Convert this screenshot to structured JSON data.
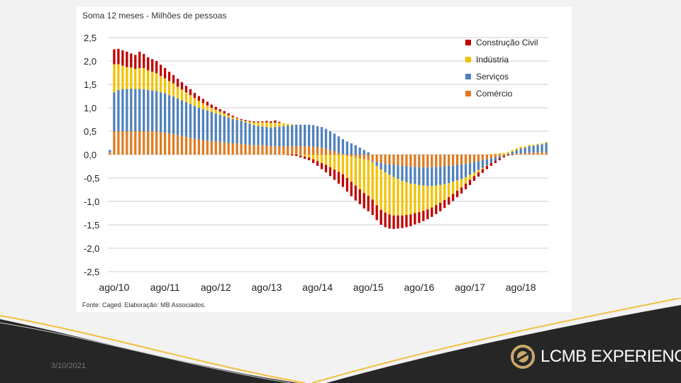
{
  "slide": {
    "date": "3/10/2021",
    "page_number": "21",
    "brand": "LCMB EXPERIENCE"
  },
  "colors": {
    "construcao": "#c00000",
    "industria": "#f2c200",
    "servicos": "#4f81bd",
    "comercio": "#e07b20",
    "grid": "#bfbfbf"
  },
  "chart_data": {
    "type": "bar",
    "stacked": true,
    "subtitle": "Soma 12 meses - Milhões de pessoas",
    "source": "Fonte: Caged. Elaboração: MB Associados.",
    "ylim": [
      -2.5,
      2.5
    ],
    "yticks": [
      "2,5",
      "2,0",
      "1,5",
      "1,0",
      "0,5",
      "0,0",
      "-0,5",
      "-1,0",
      "-1,5",
      "-2,0",
      "-2,5"
    ],
    "xticks": [
      "ago/10",
      "ago/11",
      "ago/12",
      "ago/13",
      "ago/14",
      "ago/15",
      "ago/16",
      "ago/17",
      "ago/18"
    ],
    "legend": [
      "Construção Civil",
      "Indústria",
      "Serviços",
      "Comércio"
    ],
    "series": [
      {
        "name": "Comércio",
        "color": "#e07b20",
        "values": [
          0.05,
          0.5,
          0.5,
          0.5,
          0.5,
          0.5,
          0.5,
          0.5,
          0.5,
          0.5,
          0.5,
          0.5,
          0.48,
          0.47,
          0.45,
          0.44,
          0.42,
          0.4,
          0.38,
          0.36,
          0.34,
          0.32,
          0.31,
          0.3,
          0.29,
          0.28,
          0.27,
          0.26,
          0.25,
          0.24,
          0.24,
          0.23,
          0.22,
          0.21,
          0.2,
          0.2,
          0.2,
          0.19,
          0.18,
          0.18,
          0.18,
          0.18,
          0.18,
          0.18,
          0.18,
          0.18,
          0.18,
          0.18,
          0.17,
          0.16,
          0.15,
          0.13,
          0.1,
          0.07,
          0.04,
          0.01,
          -0.02,
          -0.04,
          -0.06,
          -0.08,
          -0.1,
          -0.12,
          -0.14,
          -0.16,
          -0.18,
          -0.2,
          -0.21,
          -0.22,
          -0.23,
          -0.24,
          -0.25,
          -0.26,
          -0.26,
          -0.27,
          -0.27,
          -0.27,
          -0.27,
          -0.26,
          -0.26,
          -0.25,
          -0.24,
          -0.23,
          -0.22,
          -0.21,
          -0.2,
          -0.18,
          -0.16,
          -0.14,
          -0.12,
          -0.1,
          -0.08,
          -0.06,
          -0.04,
          -0.02,
          0.0,
          0.01,
          0.02,
          0.03,
          0.03,
          0.04,
          0.04,
          0.05,
          0.05,
          0.05
        ]
      },
      {
        "name": "Serviços",
        "color": "#4f81bd",
        "values": [
          0.05,
          0.83,
          0.88,
          0.9,
          0.9,
          0.91,
          0.9,
          0.9,
          0.9,
          0.88,
          0.87,
          0.86,
          0.85,
          0.84,
          0.82,
          0.8,
          0.78,
          0.76,
          0.74,
          0.72,
          0.7,
          0.68,
          0.66,
          0.64,
          0.62,
          0.6,
          0.58,
          0.56,
          0.54,
          0.52,
          0.5,
          0.49,
          0.47,
          0.45,
          0.43,
          0.41,
          0.4,
          0.4,
          0.4,
          0.41,
          0.42,
          0.43,
          0.44,
          0.45,
          0.46,
          0.46,
          0.46,
          0.46,
          0.46,
          0.45,
          0.44,
          0.42,
          0.4,
          0.38,
          0.35,
          0.32,
          0.28,
          0.24,
          0.2,
          0.15,
          0.1,
          0.05,
          -0.02,
          -0.08,
          -0.14,
          -0.18,
          -0.22,
          -0.26,
          -0.29,
          -0.32,
          -0.34,
          -0.36,
          -0.37,
          -0.38,
          -0.39,
          -0.4,
          -0.4,
          -0.4,
          -0.39,
          -0.38,
          -0.37,
          -0.35,
          -0.33,
          -0.31,
          -0.28,
          -0.25,
          -0.22,
          -0.19,
          -0.16,
          -0.13,
          -0.1,
          -0.07,
          -0.04,
          -0.01,
          0.02,
          0.05,
          0.08,
          0.1,
          0.12,
          0.14,
          0.15,
          0.16,
          0.17,
          0.2
        ]
      },
      {
        "name": "Indústria",
        "color": "#f2c200",
        "values": [
          0.0,
          0.6,
          0.55,
          0.5,
          0.47,
          0.45,
          0.43,
          0.45,
          0.45,
          0.42,
          0.4,
          0.38,
          0.35,
          0.32,
          0.3,
          0.28,
          0.25,
          0.23,
          0.21,
          0.19,
          0.17,
          0.15,
          0.13,
          0.11,
          0.09,
          0.08,
          0.07,
          0.06,
          0.05,
          0.04,
          0.03,
          0.02,
          0.03,
          0.04,
          0.06,
          0.08,
          0.09,
          0.1,
          0.1,
          0.09,
          0.08,
          0.06,
          0.04,
          0.02,
          0.0,
          -0.02,
          -0.04,
          -0.06,
          -0.1,
          -0.14,
          -0.18,
          -0.22,
          -0.27,
          -0.32,
          -0.37,
          -0.42,
          -0.48,
          -0.54,
          -0.6,
          -0.66,
          -0.72,
          -0.76,
          -0.8,
          -0.84,
          -0.86,
          -0.86,
          -0.85,
          -0.82,
          -0.78,
          -0.74,
          -0.7,
          -0.66,
          -0.62,
          -0.58,
          -0.54,
          -0.5,
          -0.46,
          -0.42,
          -0.38,
          -0.34,
          -0.3,
          -0.26,
          -0.22,
          -0.18,
          -0.14,
          -0.11,
          -0.08,
          -0.05,
          -0.03,
          -0.01,
          0.01,
          0.02,
          0.03,
          0.04,
          0.04,
          0.04,
          0.04,
          0.04,
          0.03,
          0.03,
          0.02,
          0.02,
          0.02,
          0.02
        ]
      },
      {
        "name": "Construção Civil",
        "color": "#c00000",
        "values": [
          0.0,
          0.32,
          0.33,
          0.33,
          0.33,
          0.3,
          0.3,
          0.35,
          0.3,
          0.28,
          0.27,
          0.26,
          0.24,
          0.22,
          0.2,
          0.18,
          0.17,
          0.16,
          0.14,
          0.13,
          0.11,
          0.1,
          0.09,
          0.08,
          0.07,
          0.06,
          0.05,
          0.05,
          0.04,
          0.03,
          0.02,
          0.02,
          0.02,
          0.02,
          0.02,
          0.02,
          0.02,
          0.03,
          0.03,
          0.05,
          0.02,
          0.0,
          -0.01,
          -0.02,
          -0.03,
          -0.04,
          -0.05,
          -0.06,
          -0.08,
          -0.1,
          -0.13,
          -0.16,
          -0.19,
          -0.22,
          -0.25,
          -0.27,
          -0.29,
          -0.31,
          -0.32,
          -0.32,
          -0.33,
          -0.33,
          -0.33,
          -0.32,
          -0.32,
          -0.31,
          -0.3,
          -0.29,
          -0.28,
          -0.27,
          -0.26,
          -0.25,
          -0.24,
          -0.23,
          -0.22,
          -0.21,
          -0.2,
          -0.19,
          -0.18,
          -0.17,
          -0.16,
          -0.15,
          -0.14,
          -0.13,
          -0.12,
          -0.11,
          -0.1,
          -0.09,
          -0.08,
          -0.07,
          -0.06,
          -0.05,
          -0.04,
          -0.03,
          -0.02,
          -0.01,
          0.0,
          0.0,
          0.0,
          0.0,
          0.0,
          0.0,
          0.0,
          0.0
        ]
      }
    ]
  }
}
